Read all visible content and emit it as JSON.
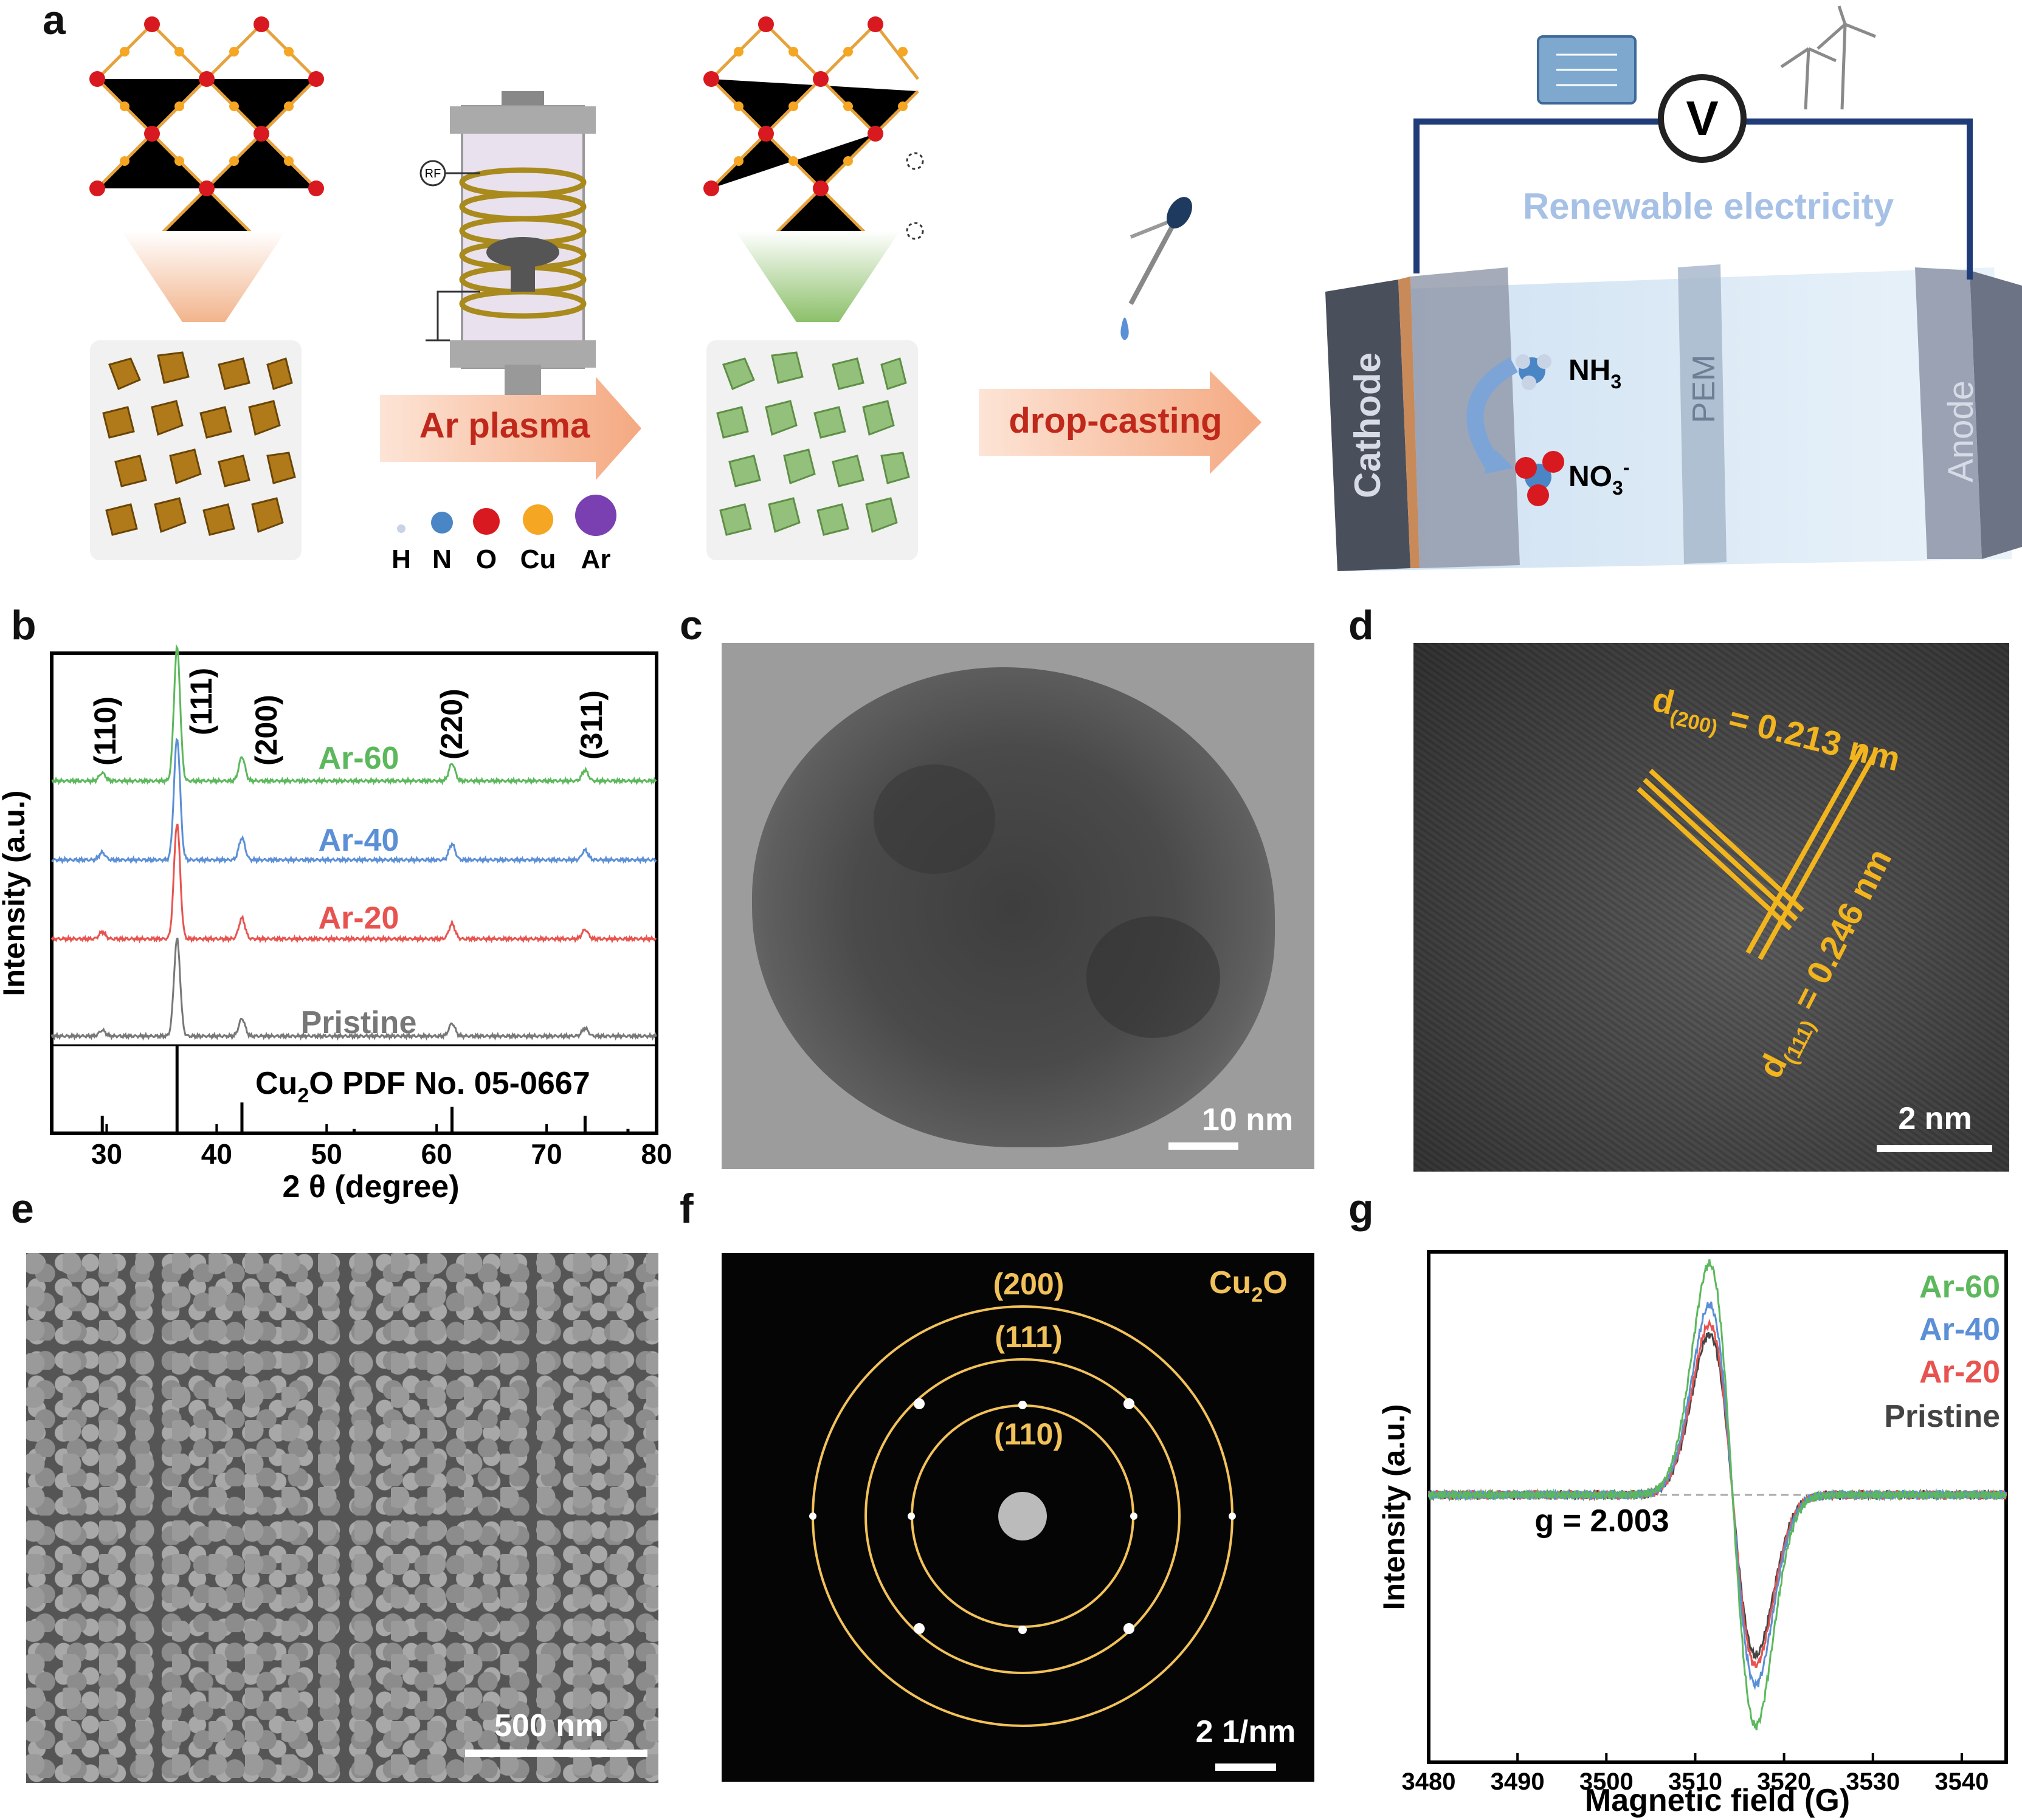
{
  "panels": {
    "a": "a",
    "b": "b",
    "c": "c",
    "d": "d",
    "e": "e",
    "f": "f",
    "g": "g"
  },
  "panel_a": {
    "arrow1_label": "Ar plasma",
    "arrow2_label": "drop-casting",
    "rf_label": "RF",
    "legend": [
      "H",
      "N",
      "O",
      "Cu",
      "Ar"
    ],
    "legend_colors": [
      "#c9d3e6",
      "#4a86c5",
      "#d8191f",
      "#f5a623",
      "#7a3fb0"
    ],
    "renewable": "Renewable  electricity",
    "voltmeter": "V",
    "cathode": "Cathode",
    "pem": "PEM",
    "anode": "Anode",
    "nh3": "NH",
    "nh3_sub": "3",
    "no3": "NO",
    "no3_sub": "3",
    "no3_sup": "-"
  },
  "panel_b": {
    "ylabel": "Intensity (a.u.)",
    "xlabel": "2 θ (degree)",
    "peaks": [
      "(110)",
      "(111)",
      "(200)",
      "(220)",
      "(311)"
    ],
    "series_labels": [
      "Ar-60",
      "Ar-40",
      "Ar-20",
      "Pristine"
    ],
    "series_colors": [
      "#5cb85c",
      "#5b8fd6",
      "#e8534f",
      "#777777"
    ],
    "ref_label_pre": "Cu",
    "ref_label_sub": "2",
    "ref_label_post": "O PDF No. 05-0667",
    "x_ticks": [
      "30",
      "40",
      "50",
      "60",
      "70",
      "80"
    ]
  },
  "chart_data": [
    {
      "type": "line",
      "xlabel": "2 θ (degree)",
      "ylabel": "Intensity (a.u.)",
      "xlim": [
        25,
        80
      ],
      "series": [
        {
          "name": "Ar-60",
          "peaks": [
            29.6,
            36.4,
            42.3,
            61.4,
            73.5
          ]
        },
        {
          "name": "Ar-40",
          "peaks": [
            29.6,
            36.4,
            42.3,
            61.4,
            73.5
          ]
        },
        {
          "name": "Ar-20",
          "peaks": [
            29.6,
            36.4,
            42.3,
            61.4,
            73.5
          ]
        },
        {
          "name": "Pristine",
          "peaks": [
            29.6,
            36.4,
            42.3,
            61.4,
            73.5
          ]
        }
      ],
      "reference": {
        "name": "Cu2O PDF No. 05-0667",
        "x": [
          29.6,
          36.4,
          42.3,
          52.5,
          61.4,
          73.5,
          77.4
        ],
        "rel": [
          0.2,
          1.0,
          0.35,
          0.05,
          0.3,
          0.2,
          0.05
        ]
      }
    },
    {
      "type": "line",
      "xlabel": "Magnetic field (G)",
      "ylabel": "Intensity (a.u.)",
      "xlim": [
        3480,
        3545
      ],
      "annotation": "g = 2.003",
      "series": [
        {
          "name": "Ar-60",
          "peak_amp": 0.95
        },
        {
          "name": "Ar-40",
          "peak_amp": 0.78
        },
        {
          "name": "Ar-20",
          "peak_amp": 0.7
        },
        {
          "name": "Pristine",
          "peak_amp": 0.66
        }
      ]
    }
  ],
  "panel_c": {
    "scale": "10 nm"
  },
  "panel_d": {
    "d200_pre": "d",
    "d200_sub": "(200)",
    "d200_post": " = 0.213 nm",
    "d111_pre": "d",
    "d111_sub": "(111)",
    "d111_post": " = 0.246 nm",
    "scale": "2 nm"
  },
  "panel_e": {
    "scale": "500 nm"
  },
  "panel_f": {
    "rings": [
      "(200)",
      "(111)",
      "(110)"
    ],
    "label_pre": "Cu",
    "label_sub": "2",
    "label_post": "O",
    "scale": "2 1/nm"
  },
  "panel_g": {
    "ylabel": "Intensity (a.u.)",
    "xlabel": "Magnetic field (G)",
    "g_label": "g = 2.003",
    "series_labels": [
      "Ar-60",
      "Ar-40",
      "Ar-20",
      "Pristine"
    ],
    "series_colors": [
      "#5cb85c",
      "#5b8fd6",
      "#e8534f",
      "#444444"
    ],
    "x_ticks": [
      "3480",
      "3490",
      "3500",
      "3510",
      "3520",
      "3530",
      "3540"
    ]
  }
}
